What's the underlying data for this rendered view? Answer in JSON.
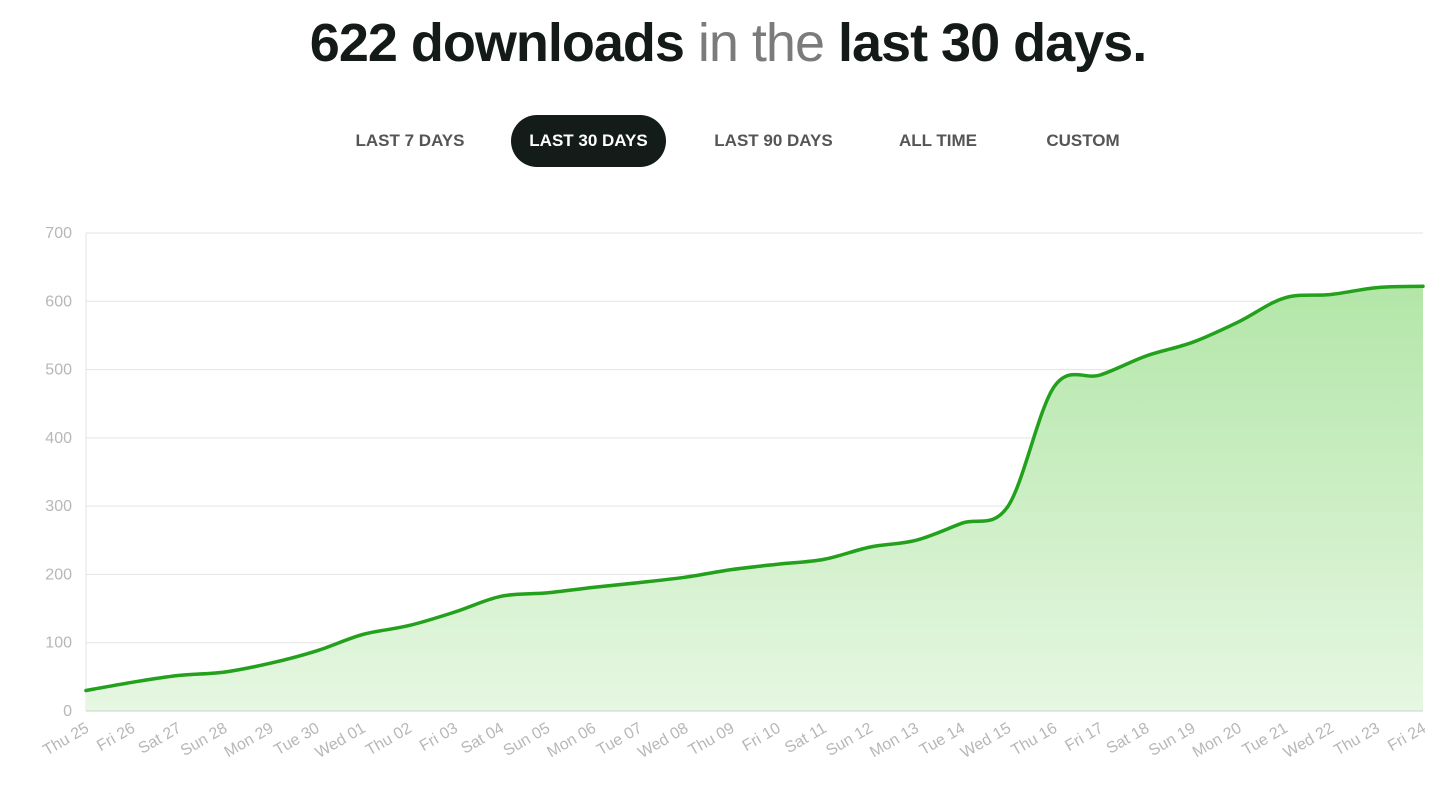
{
  "headline": {
    "count_text": "622 downloads",
    "mid_text": " in the ",
    "period_text": "last 30 days."
  },
  "range_tabs": [
    {
      "label": "LAST 7 DAYS",
      "active": false
    },
    {
      "label": "LAST 30 DAYS",
      "active": true
    },
    {
      "label": "LAST 90 DAYS",
      "active": false
    },
    {
      "label": "ALL TIME",
      "active": false
    },
    {
      "label": "CUSTOM",
      "active": false
    }
  ],
  "colors": {
    "line": "#23a01c",
    "area_top": "#b3e6a8",
    "area_bottom": "#e6f7e2",
    "grid": "#e3e3e3",
    "axis_text": "#b7b7b7",
    "active_tab_bg": "#141c19"
  },
  "chart_data": {
    "type": "area",
    "title": "",
    "xlabel": "",
    "ylabel": "",
    "ylim": [
      0,
      700
    ],
    "yticks": [
      0,
      100,
      200,
      300,
      400,
      500,
      600,
      700
    ],
    "grid": true,
    "categories": [
      "Thu 25",
      "Fri 26",
      "Sat 27",
      "Sun 28",
      "Mon 29",
      "Tue 30",
      "Wed 01",
      "Thu 02",
      "Fri 03",
      "Sat 04",
      "Sun 05",
      "Mon 06",
      "Tue 07",
      "Wed 08",
      "Thu 09",
      "Fri 10",
      "Sat 11",
      "Sun 12",
      "Mon 13",
      "Tue 14",
      "Wed 15",
      "Thu 16",
      "Fri 17",
      "Sat 18",
      "Sun 19",
      "Mon 20",
      "Tue 21",
      "Wed 22",
      "Thu 23",
      "Fri 24"
    ],
    "series": [
      {
        "values": [
          30,
          42,
          52,
          57,
          70,
          88,
          112,
          125,
          145,
          168,
          173,
          181,
          188,
          196,
          207,
          215,
          222,
          240,
          250,
          275,
          300,
          475,
          492,
          520,
          540,
          570,
          605,
          610,
          620,
          622
        ]
      }
    ]
  }
}
